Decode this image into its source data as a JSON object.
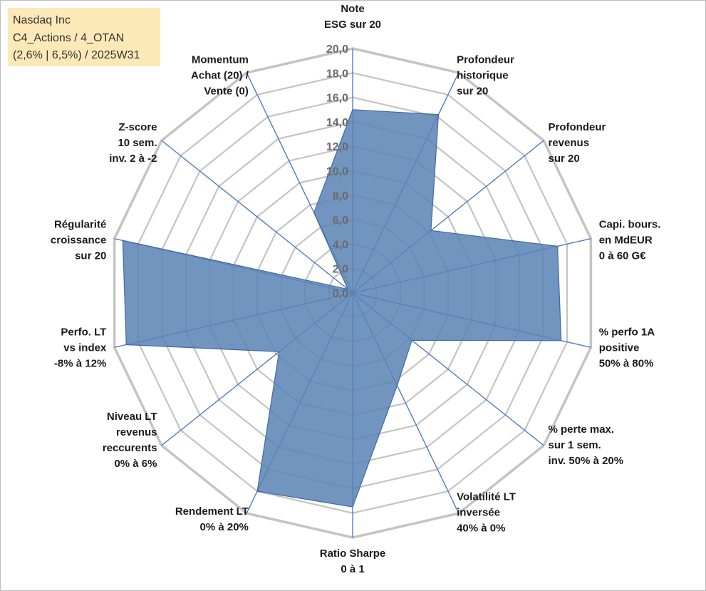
{
  "info_box": {
    "line1": "Nasdaq Inc",
    "line2": "C4_Actions / 4_OTAN",
    "line3": "(2,6% | 6,5%) / 2025W31"
  },
  "colors": {
    "grid": "#c4c4c4",
    "spoke": "#4472c4",
    "fill": "#5b84b5",
    "fill_stroke": "#3d6aa8",
    "info_bg": "#fde9b7"
  },
  "chart_data": {
    "type": "radar",
    "rlim": [
      0,
      20
    ],
    "ticks": [
      "0,0",
      "2,0",
      "4,0",
      "6,0",
      "8,0",
      "10,0",
      "12,0",
      "14,0",
      "16,0",
      "18,0",
      "20,0"
    ],
    "grid": true,
    "categories": [
      [
        "Note",
        "ESG sur 20"
      ],
      [
        "Profondeur",
        "historique",
        "sur 20"
      ],
      [
        "Profondeur",
        "revenus",
        "sur 20"
      ],
      [
        "Capi. bours.",
        "en MdEUR",
        "0 à 60 G€"
      ],
      [
        "% perfo 1A",
        "positive",
        "50% à 80%"
      ],
      [
        "% perte max.",
        "sur 1 sem.",
        "inv. 50% à 20%"
      ],
      [
        "Volatilité LT",
        "inversée",
        "40% à 0%"
      ],
      [
        "Ratio Sharpe",
        "0 à 1"
      ],
      [
        "Rendement LT",
        "0% à 20%"
      ],
      [
        "Niveau LT",
        "revenus",
        "reccurents",
        "0% à 6%"
      ],
      [
        "Perfo. LT",
        "vs index",
        "-8% à 12%"
      ],
      [
        "Régularité",
        "croissance",
        "sur 20"
      ],
      [
        "Z-score",
        "10 sem.",
        "inv. 2 à -2"
      ],
      [
        "Momentum",
        "Achat (20) /",
        "Vente (0)"
      ]
    ],
    "series": [
      {
        "values": [
          15.0,
          16.2,
          8.2,
          17.2,
          17.5,
          6.2,
          8.4,
          17.5,
          18.0,
          7.7,
          19.0,
          19.3,
          0.5,
          7.3
        ]
      }
    ]
  }
}
